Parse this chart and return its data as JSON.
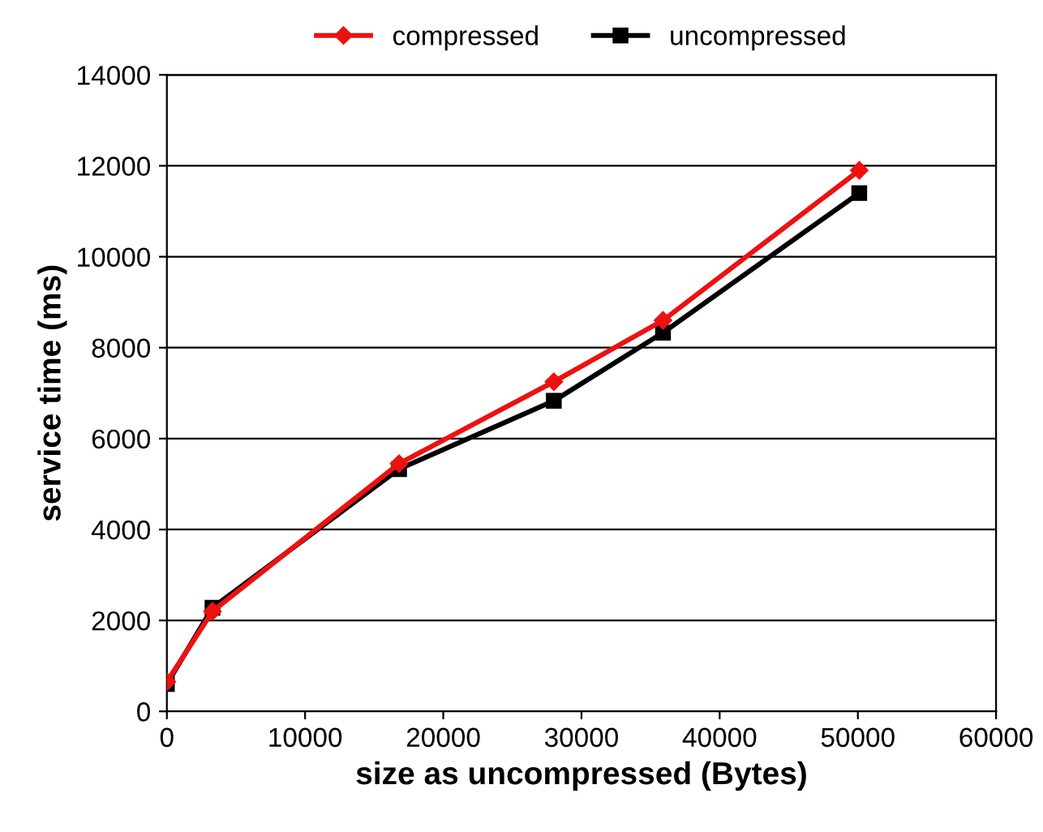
{
  "chart_data": {
    "type": "line",
    "xlabel": "size as uncompressed (Bytes)",
    "ylabel": "service time (ms)",
    "xlim": [
      0,
      60000
    ],
    "xticks": [
      0,
      10000,
      20000,
      30000,
      40000,
      50000,
      60000
    ],
    "ylim": [
      0,
      14000
    ],
    "yticks": [
      0,
      2000,
      4000,
      6000,
      8000,
      10000,
      12000,
      14000
    ],
    "grid": "y",
    "legend": "top",
    "line_style": "solid",
    "series": [
      {
        "name": "compressed",
        "color": "#ee1111",
        "marker": "diamond",
        "x": [
          0,
          3300,
          16800,
          28000,
          35900,
          50100
        ],
        "values": [
          650,
          2200,
          5450,
          7250,
          8600,
          11900
        ]
      },
      {
        "name": "uncompressed",
        "color": "#000000",
        "marker": "square",
        "x": [
          0,
          3300,
          16800,
          28000,
          35900,
          50100
        ],
        "values": [
          600,
          2280,
          5330,
          6830,
          8330,
          11400
        ]
      }
    ]
  }
}
